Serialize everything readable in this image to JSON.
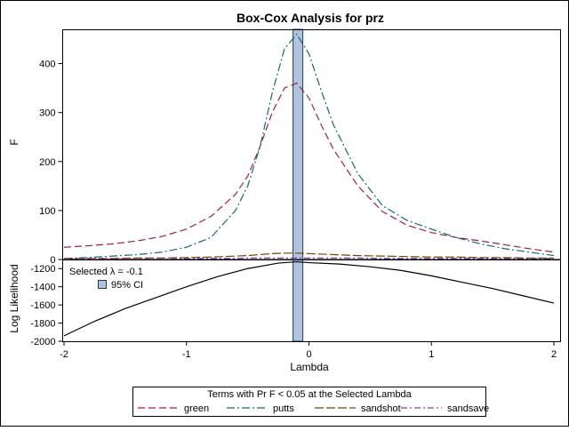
{
  "chart_data": [
    {
      "type": "line",
      "title": "Box-Cox Analysis for prz",
      "xlabel": "Lambda",
      "ylabel": "F",
      "xlim": [
        -2,
        2
      ],
      "ylim": [
        0,
        470
      ],
      "x_ticks": [
        -2,
        -1,
        0,
        1,
        2
      ],
      "y_ticks": [
        0,
        100,
        200,
        300,
        400
      ],
      "grid": false,
      "x": [
        -2.0,
        -1.8,
        -1.6,
        -1.4,
        -1.2,
        -1.0,
        -0.8,
        -0.6,
        -0.5,
        -0.4,
        -0.3,
        -0.2,
        -0.1,
        0.0,
        0.1,
        0.2,
        0.4,
        0.6,
        0.8,
        1.0,
        1.2,
        1.4,
        1.6,
        1.8,
        2.0
      ],
      "series": [
        {
          "name": "green",
          "color": "#a0223a",
          "dash": "8,4",
          "values": [
            25,
            28,
            32,
            38,
            47,
            62,
            88,
            133,
            170,
            230,
            300,
            350,
            360,
            330,
            275,
            225,
            150,
            98,
            70,
            55,
            45,
            38,
            30,
            22,
            15
          ]
        },
        {
          "name": "putts",
          "color": "#14696b",
          "dash": "9,3,2,3",
          "values": [
            2,
            4,
            7,
            10,
            15,
            25,
            45,
            100,
            150,
            230,
            340,
            430,
            460,
            420,
            345,
            275,
            175,
            110,
            80,
            62,
            45,
            32,
            22,
            15,
            8
          ]
        },
        {
          "name": "sandshot",
          "color": "#6b4a00",
          "dash": "10,3",
          "values": [
            2,
            2,
            2,
            3,
            3,
            4,
            5,
            7,
            8,
            10,
            12,
            13,
            13,
            12,
            11,
            10,
            8,
            7,
            6,
            5,
            5,
            4,
            4,
            3,
            3
          ]
        },
        {
          "name": "sandsave",
          "color": "#8a3aa8",
          "dash": "7,3,2,3",
          "values": [
            1,
            1,
            1,
            1,
            1,
            2,
            2,
            2,
            3,
            3,
            3,
            3,
            3,
            3,
            3,
            3,
            3,
            2,
            2,
            2,
            2,
            2,
            2,
            2,
            2
          ]
        }
      ],
      "selected_band": {
        "x_range": [
          -0.13,
          -0.05
        ],
        "color": "#b0c4de"
      }
    },
    {
      "type": "line",
      "xlabel": "Lambda",
      "ylabel": "Log Likelihood",
      "xlim": [
        -2,
        2
      ],
      "ylim": [
        -2000,
        -1100
      ],
      "x_ticks": [
        -2,
        -1,
        0,
        1,
        2
      ],
      "y_ticks": [
        -1200,
        -1400,
        -1600,
        -1800,
        -2000
      ],
      "x": [
        -2.0,
        -1.75,
        -1.5,
        -1.25,
        -1.0,
        -0.75,
        -0.5,
        -0.25,
        -0.1,
        0.0,
        0.25,
        0.5,
        0.75,
        1.0,
        1.25,
        1.5,
        1.75,
        2.0
      ],
      "series": [
        {
          "color": "#000000",
          "values": [
            -1940,
            -1780,
            -1640,
            -1520,
            -1400,
            -1290,
            -1200,
            -1140,
            -1125,
            -1135,
            -1150,
            -1180,
            -1220,
            -1280,
            -1350,
            -1420,
            -1500,
            -1580
          ]
        }
      ],
      "selected_band": {
        "x_range": [
          -0.13,
          -0.05
        ],
        "color": "#b0c4de"
      },
      "annotations": {
        "selected_lambda": "Selected λ = -0.1",
        "ci_label": "95% CI"
      }
    }
  ],
  "legend": {
    "title": "Terms with Pr F < 0.05 at the Selected Lambda",
    "entries": [
      "green",
      "putts",
      "sandshot",
      "sandsave"
    ]
  }
}
